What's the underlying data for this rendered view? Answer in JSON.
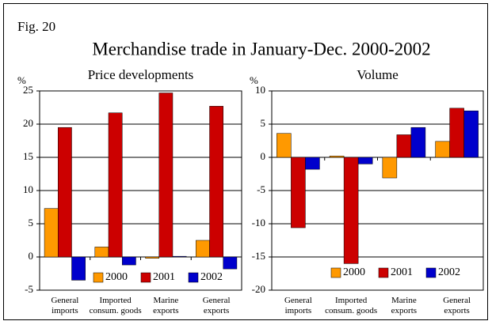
{
  "figure": "Fig. 20",
  "title": "Merchandise trade in January-Dec. 2000-2002",
  "chart_data": [
    {
      "type": "bar",
      "subtitle": "Price developments",
      "ylabel": "%",
      "categories": [
        "General\nimports",
        "Imported\nconsum. goods",
        "Marine\nexports",
        "General\nexports"
      ],
      "series": [
        {
          "name": "2000",
          "color": "#ff9900",
          "values": [
            7.3,
            1.5,
            -0.2,
            2.5
          ]
        },
        {
          "name": "2001",
          "color": "#cc0000",
          "values": [
            19.5,
            21.7,
            24.7,
            22.7
          ]
        },
        {
          "name": "2002",
          "color": "#0000cc",
          "values": [
            -3.5,
            -1.2,
            0.1,
            -1.8
          ]
        }
      ],
      "ylim": [
        -5,
        25
      ],
      "yticks": [
        -5,
        0,
        5,
        10,
        15,
        20,
        25
      ],
      "grid": true,
      "legend": "bottom"
    },
    {
      "type": "bar",
      "subtitle": "Volume",
      "ylabel": "%",
      "categories": [
        "General\nimports",
        "Imported\nconsum. goods",
        "Marine\nexports",
        "General\nexports"
      ],
      "series": [
        {
          "name": "2000",
          "color": "#ff9900",
          "values": [
            3.6,
            0.2,
            -3.1,
            2.4
          ]
        },
        {
          "name": "2001",
          "color": "#cc0000",
          "values": [
            -10.6,
            -16,
            3.4,
            7.4
          ]
        },
        {
          "name": "2002",
          "color": "#0000cc",
          "values": [
            -1.8,
            -1.0,
            4.5,
            7.0
          ]
        }
      ],
      "ylim": [
        -20,
        10
      ],
      "yticks": [
        -20,
        -15,
        -10,
        -5,
        0,
        5,
        10
      ],
      "grid": true,
      "legend": "bottom"
    }
  ]
}
